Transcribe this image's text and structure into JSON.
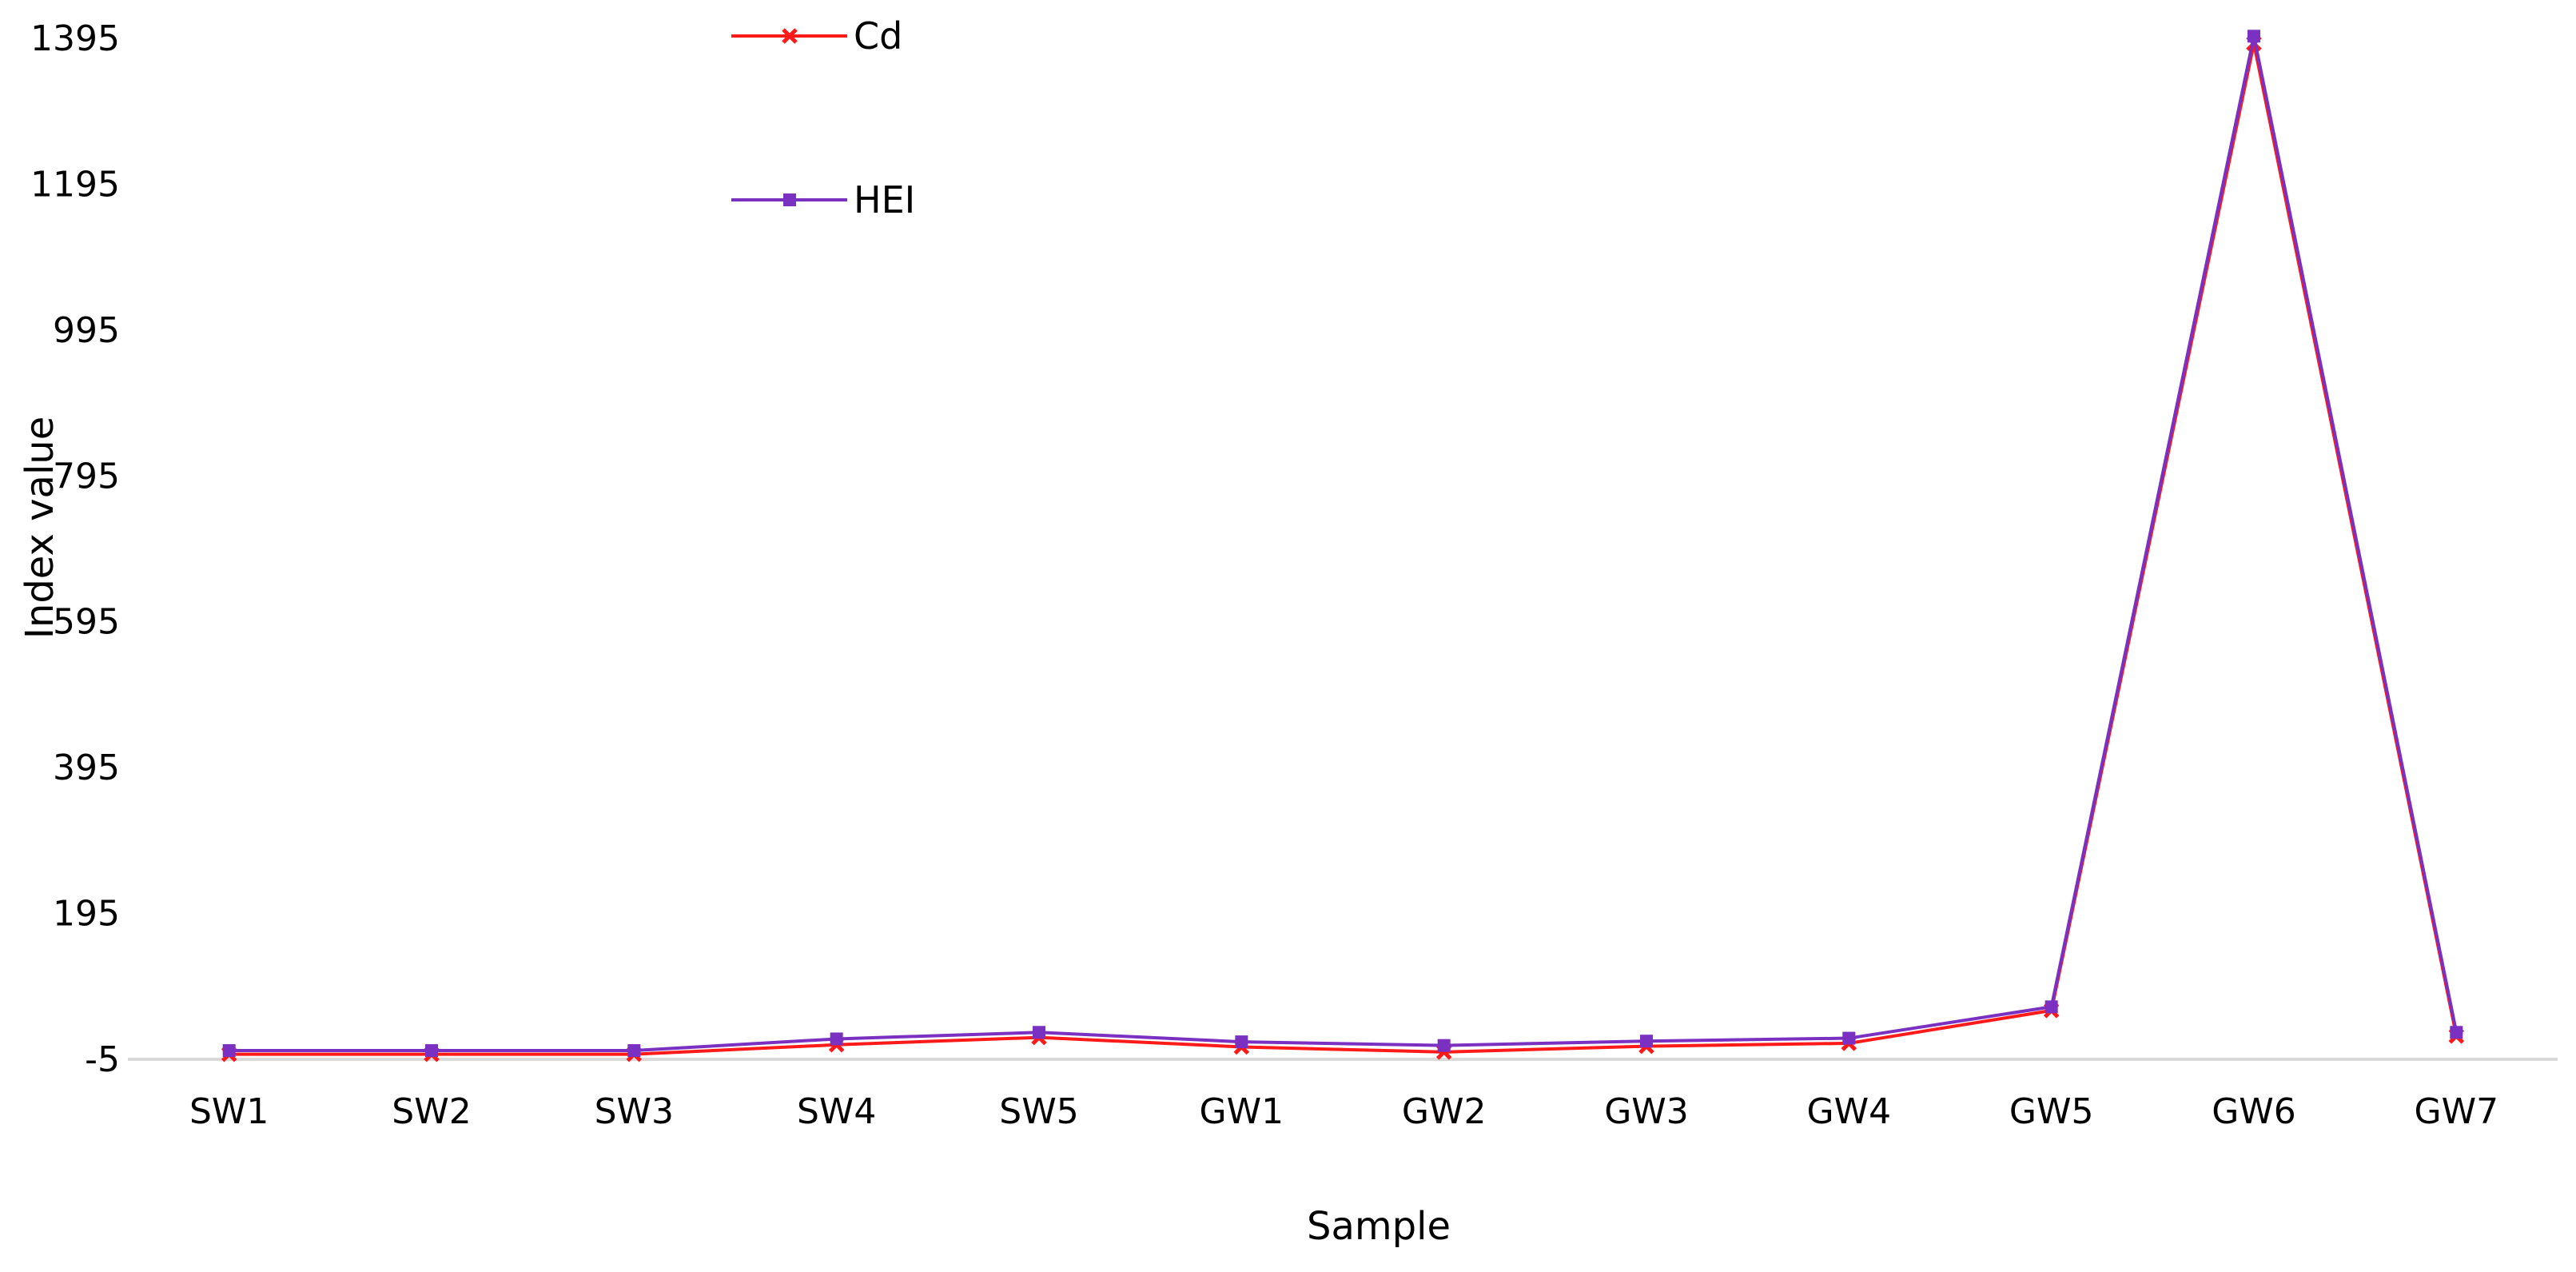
{
  "chart_data": {
    "type": "line",
    "title": "",
    "xlabel": "Sample",
    "ylabel": "Index value",
    "categories": [
      "SW1",
      "SW2",
      "SW3",
      "SW4",
      "SW5",
      "GW1",
      "GW2",
      "GW3",
      "GW4",
      "GW5",
      "GW6",
      "GW7"
    ],
    "ylim": [
      -5,
      1395
    ],
    "yticks": [
      "1395",
      "1195",
      "995",
      "795",
      "595",
      "395",
      "195",
      "-5"
    ],
    "grid": false,
    "legend_position": "top-left",
    "series": [
      {
        "name": "Cd",
        "color": "#ff1a1a",
        "marker": "x-marker",
        "values": [
          2,
          2,
          2,
          15,
          25,
          12,
          5,
          13,
          17,
          62,
          1388,
          27
        ]
      },
      {
        "name": "HEI",
        "color": "#7a30c0",
        "marker": "square-marker",
        "values": [
          7,
          7,
          7,
          23,
          32,
          19,
          14,
          20,
          24,
          67,
          1398,
          32
        ]
      }
    ]
  }
}
